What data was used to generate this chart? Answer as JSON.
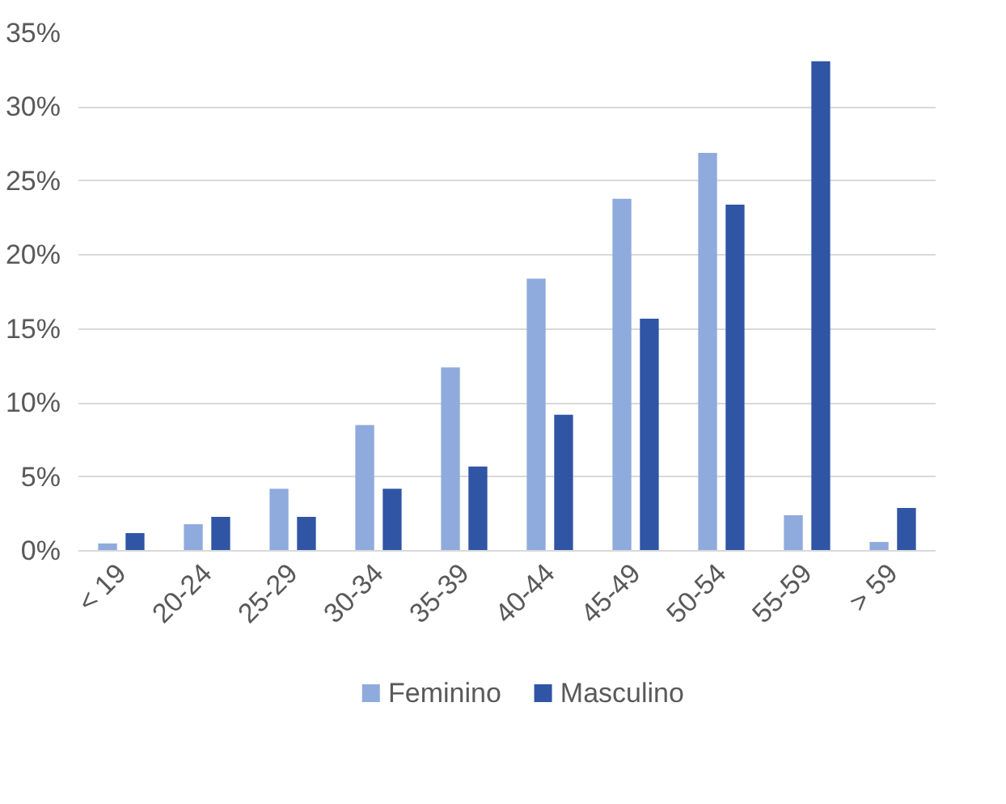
{
  "chart_data": {
    "type": "bar",
    "categories": [
      "< 19",
      "20-24",
      "25-29",
      "30-34",
      "35-39",
      "40-44",
      "45-49",
      "50-54",
      "55-59",
      "> 59"
    ],
    "series": [
      {
        "name": "Feminino",
        "color": "#8faadc",
        "values": [
          0.5,
          1.8,
          4.2,
          8.5,
          12.4,
          18.4,
          23.8,
          26.9,
          2.4,
          0.6
        ]
      },
      {
        "name": "Masculino",
        "color": "#2f55a4",
        "values": [
          1.2,
          2.3,
          2.3,
          4.2,
          5.7,
          9.2,
          15.7,
          23.4,
          33.1,
          2.9
        ]
      }
    ],
    "ylim": [
      0,
      35
    ],
    "yticks": [
      {
        "value": 0,
        "label": "0%"
      },
      {
        "value": 5,
        "label": "5%"
      },
      {
        "value": 10,
        "label": "10%"
      },
      {
        "value": 15,
        "label": "15%"
      },
      {
        "value": 20,
        "label": "20%"
      },
      {
        "value": 25,
        "label": "25%"
      },
      {
        "value": 30,
        "label": "30%"
      },
      {
        "value": 35,
        "label": "35%"
      }
    ],
    "grid": "y",
    "legend": "bottom"
  }
}
